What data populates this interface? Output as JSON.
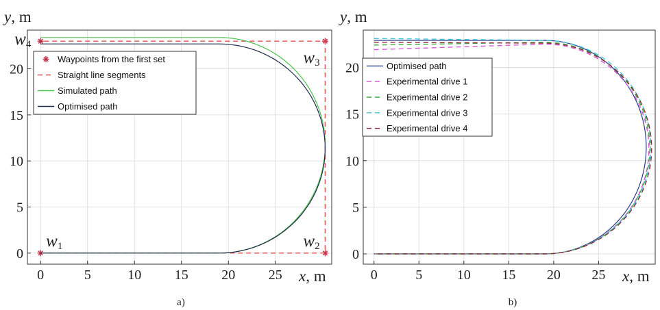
{
  "chart_data": [
    {
      "type": "line",
      "panel_caption": "a)",
      "xlabel": {
        "var": "x",
        "unit": ", m"
      },
      "ylabel": {
        "var": "y",
        "unit": ", m"
      },
      "xlim": [
        -1.4,
        31
      ],
      "ylim": [
        -1.2,
        24.2
      ],
      "xticks": [
        0,
        5,
        10,
        15,
        20,
        25
      ],
      "yticks": [
        0,
        5,
        10,
        15,
        20
      ],
      "grid": true,
      "legend_position": "top-left",
      "waypoints": [
        {
          "name": "w",
          "sub": "1",
          "x": 0,
          "y": 0
        },
        {
          "name": "w",
          "sub": "2",
          "x": 30.3,
          "y": 0
        },
        {
          "name": "w",
          "sub": "3",
          "x": 30.3,
          "y": 23.0
        },
        {
          "name": "w",
          "sub": "4",
          "x": 0,
          "y": 23.0
        }
      ],
      "series": [
        {
          "name": "Waypoints from the first set",
          "style": "marker-star",
          "color": "#c0304a",
          "x": [
            0,
            30.3,
            30.3,
            0
          ],
          "y": [
            0,
            0,
            23.0,
            23.0
          ]
        },
        {
          "name": "Straight line segments",
          "style": "dashed",
          "color": "#d9534f",
          "x": [
            0,
            30.3,
            30.3,
            0
          ],
          "y": [
            0,
            0,
            23.0,
            23.0
          ]
        },
        {
          "name": "Simulated path",
          "style": "solid",
          "color": "#4cc24c",
          "path": {
            "y_bottom": 0,
            "y_top": 23.4,
            "straight_until_x": 19.0,
            "cx": 19.0,
            "rx": 11.3,
            "top_start_y": 23.4
          }
        },
        {
          "name": "Optimised path",
          "style": "solid",
          "color": "#1f2b4d",
          "path": {
            "y_bottom": 0,
            "y_top": 22.7,
            "straight_until_x": 19.0,
            "cx": 19.0,
            "rx": 11.3,
            "top_start_y": 22.7
          }
        }
      ]
    },
    {
      "type": "line",
      "panel_caption": "b)",
      "xlabel": {
        "var": "x",
        "unit": ", m"
      },
      "ylabel": {
        "var": "y",
        "unit": ", m"
      },
      "xlim": [
        -1.2,
        31.3
      ],
      "ylim": [
        -1.1,
        24.0
      ],
      "xticks": [
        0,
        5,
        10,
        15,
        20,
        25
      ],
      "yticks": [
        0,
        5,
        10,
        15,
        20
      ],
      "grid": true,
      "legend_position": "top-left",
      "series": [
        {
          "name": "Optimised path",
          "style": "solid",
          "color": "#2a3a8a",
          "path": {
            "y_bottom": 0,
            "y_top": 22.9,
            "start_top_y": 22.9,
            "straight_until_x": 19.0,
            "cx": 19.0,
            "rx": 11.3
          }
        },
        {
          "name": "Experimental drive 1",
          "style": "dashed",
          "color": "#d65ad6",
          "path": {
            "y_bottom": 0,
            "y_top": 22.5,
            "start_top_y": 21.9,
            "straight_until_x": 19.0,
            "cx": 19.0,
            "rx": 11.6
          }
        },
        {
          "name": "Experimental drive 2",
          "style": "dashed",
          "color": "#3fae3f",
          "path": {
            "y_bottom": 0,
            "y_top": 22.7,
            "start_top_y": 22.4,
            "straight_until_x": 19.0,
            "cx": 19.0,
            "rx": 11.7
          }
        },
        {
          "name": "Experimental drive 3",
          "style": "dashed",
          "color": "#40c8d6",
          "path": {
            "y_bottom": 0,
            "y_top": 22.9,
            "start_top_y": 23.1,
            "straight_until_x": 19.0,
            "cx": 19.0,
            "rx": 11.8
          }
        },
        {
          "name": "Experimental drive 4",
          "style": "dashed",
          "color": "#8a2a3a",
          "path": {
            "y_bottom": 0,
            "y_top": 22.6,
            "start_top_y": 22.7,
            "straight_until_x": 19.0,
            "cx": 19.0,
            "rx": 11.9
          }
        }
      ]
    }
  ]
}
